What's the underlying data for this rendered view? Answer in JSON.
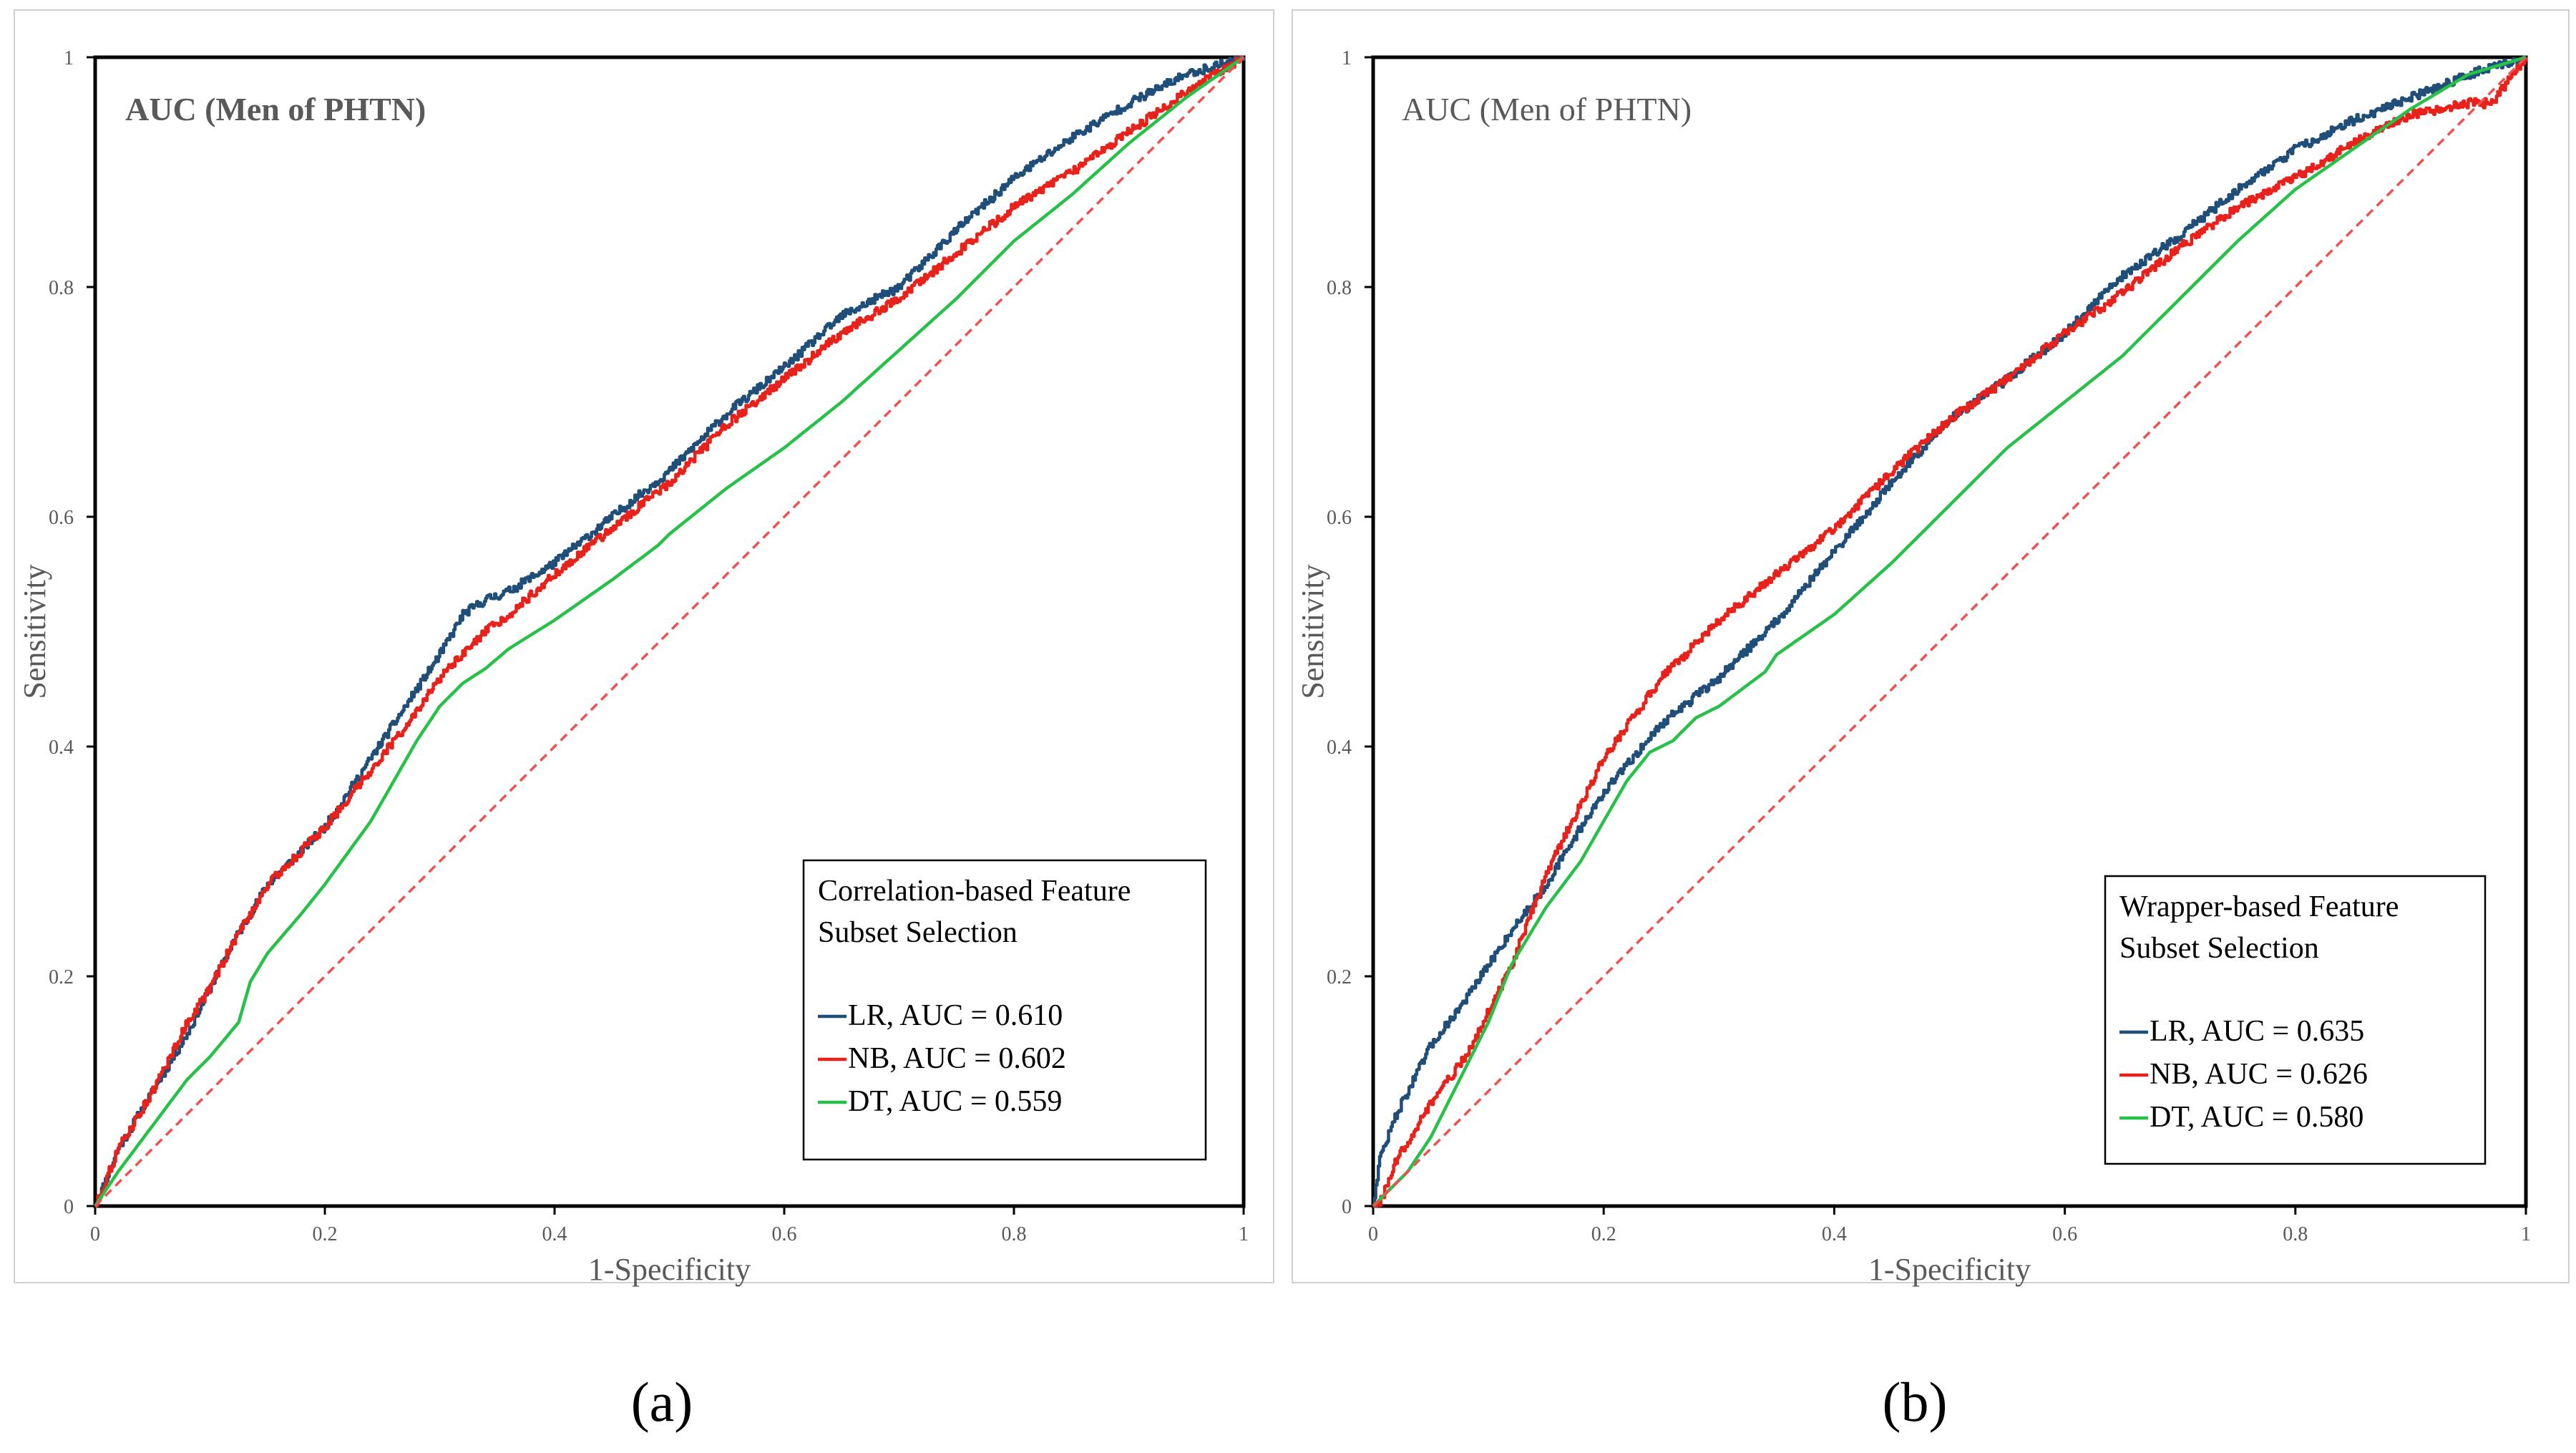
{
  "figure": {
    "panel_labels": [
      "(a)",
      "(b)"
    ]
  },
  "chart_data": [
    {
      "type": "line",
      "panel": "(a)",
      "title": "AUC (Men of PHTN)",
      "title_bold": true,
      "xlabel": "1-Specificity",
      "ylabel": "Sensitivity",
      "xlim": [
        0,
        1
      ],
      "ylim": [
        0,
        1
      ],
      "x_ticks": [
        0,
        0.2,
        0.4,
        0.6,
        0.8,
        1
      ],
      "y_ticks": [
        0,
        0.2,
        0.4,
        0.6,
        0.8,
        1
      ],
      "x_tick_labels": [
        "0",
        "0.2",
        "0.4",
        "0.6",
        "0.8",
        "1"
      ],
      "y_tick_labels": [
        "0",
        "0.2",
        "0.4",
        "0.6",
        "0.8",
        "1"
      ],
      "grid": false,
      "legend": {
        "title": [
          "Correlation-based Feature",
          "Subset Selection"
        ],
        "placement": "bottom-right"
      },
      "series": [
        {
          "name": "LR",
          "label": "LR, AUC = 0.610",
          "color": "#1f4e79",
          "x": [
            0,
            0.02,
            0.05,
            0.08,
            0.1,
            0.12,
            0.15,
            0.18,
            0.2,
            0.24,
            0.28,
            0.3,
            0.32,
            0.34,
            0.36,
            0.4,
            0.45,
            0.5,
            0.55,
            0.6,
            0.65,
            0.7,
            0.75,
            0.8,
            0.85,
            0.9,
            0.95,
            1
          ],
          "y": [
            0,
            0.05,
            0.1,
            0.15,
            0.19,
            0.23,
            0.28,
            0.31,
            0.33,
            0.39,
            0.45,
            0.48,
            0.515,
            0.528,
            0.535,
            0.56,
            0.6,
            0.64,
            0.69,
            0.73,
            0.775,
            0.8,
            0.85,
            0.895,
            0.93,
            0.96,
            0.985,
            1
          ]
        },
        {
          "name": "NB",
          "label": "NB, AUC = 0.602",
          "color": "#e8221b",
          "x": [
            0,
            0.02,
            0.05,
            0.08,
            0.1,
            0.12,
            0.15,
            0.18,
            0.2,
            0.24,
            0.28,
            0.3,
            0.32,
            0.34,
            0.36,
            0.4,
            0.45,
            0.5,
            0.55,
            0.6,
            0.65,
            0.7,
            0.75,
            0.8,
            0.85,
            0.9,
            0.95,
            1
          ],
          "y": [
            0,
            0.05,
            0.1,
            0.16,
            0.19,
            0.23,
            0.28,
            0.31,
            0.33,
            0.38,
            0.43,
            0.46,
            0.48,
            0.5,
            0.515,
            0.55,
            0.59,
            0.63,
            0.68,
            0.72,
            0.76,
            0.79,
            0.83,
            0.87,
            0.9,
            0.935,
            0.97,
            1
          ]
        },
        {
          "name": "DT",
          "label": "DT, AUC = 0.559",
          "color": "#27c048",
          "x": [
            0,
            0.02,
            0.05,
            0.08,
            0.1,
            0.125,
            0.135,
            0.15,
            0.18,
            0.2,
            0.24,
            0.28,
            0.3,
            0.32,
            0.34,
            0.36,
            0.4,
            0.45,
            0.49,
            0.5,
            0.55,
            0.6,
            0.65,
            0.7,
            0.75,
            0.8,
            0.85,
            0.9,
            0.95,
            1
          ],
          "y": [
            0,
            0.03,
            0.07,
            0.11,
            0.13,
            0.16,
            0.195,
            0.22,
            0.255,
            0.28,
            0.335,
            0.405,
            0.435,
            0.455,
            0.468,
            0.485,
            0.51,
            0.545,
            0.575,
            0.585,
            0.625,
            0.66,
            0.7,
            0.745,
            0.79,
            0.84,
            0.88,
            0.925,
            0.965,
            1
          ]
        },
        {
          "name": "Reference",
          "label": "",
          "color": "#f05050",
          "dashed": true,
          "x": [
            0,
            1
          ],
          "y": [
            0,
            1
          ]
        }
      ]
    },
    {
      "type": "line",
      "panel": "(b)",
      "title": "AUC (Men of PHTN)",
      "title_bold": false,
      "xlabel": "1-Specificity",
      "ylabel": "Sensitivity",
      "xlim": [
        0,
        1
      ],
      "ylim": [
        0,
        1
      ],
      "x_ticks": [
        0,
        0.2,
        0.4,
        0.6,
        0.8,
        1
      ],
      "y_ticks": [
        0,
        0.2,
        0.4,
        0.6,
        0.8,
        1
      ],
      "x_tick_labels": [
        "0",
        "0.2",
        "0.4",
        "0.6",
        "0.8",
        "1"
      ],
      "y_tick_labels": [
        "0",
        "0.2",
        "0.4",
        "0.6",
        "0.8",
        "1"
      ],
      "grid": false,
      "legend": {
        "title": [
          "Wrapper-based Feature",
          "Subset Selection"
        ],
        "placement": "bottom-right"
      },
      "series": [
        {
          "name": "LR",
          "label": "LR, AUC = 0.635",
          "color": "#1f4e79",
          "x": [
            0,
            0.005,
            0.02,
            0.05,
            0.08,
            0.1,
            0.12,
            0.15,
            0.18,
            0.2,
            0.25,
            0.3,
            0.35,
            0.4,
            0.45,
            0.5,
            0.55,
            0.6,
            0.65,
            0.7,
            0.75,
            0.8,
            0.85,
            0.9,
            0.95,
            1
          ],
          "y": [
            0,
            0.04,
            0.08,
            0.14,
            0.18,
            0.21,
            0.24,
            0.28,
            0.33,
            0.36,
            0.42,
            0.46,
            0.51,
            0.57,
            0.63,
            0.685,
            0.72,
            0.76,
            0.81,
            0.845,
            0.885,
            0.92,
            0.945,
            0.965,
            0.985,
            1
          ]
        },
        {
          "name": "NB",
          "label": "NB, AUC = 0.626",
          "color": "#e8221b",
          "x": [
            0,
            0.005,
            0.02,
            0.05,
            0.08,
            0.1,
            0.12,
            0.15,
            0.18,
            0.2,
            0.25,
            0.3,
            0.35,
            0.4,
            0.45,
            0.5,
            0.55,
            0.6,
            0.65,
            0.7,
            0.75,
            0.8,
            0.85,
            0.9,
            0.95,
            0.97,
            1
          ],
          "y": [
            0,
            0,
            0.04,
            0.09,
            0.13,
            0.17,
            0.21,
            0.29,
            0.35,
            0.39,
            0.46,
            0.51,
            0.55,
            0.59,
            0.64,
            0.685,
            0.72,
            0.76,
            0.795,
            0.835,
            0.87,
            0.895,
            0.925,
            0.95,
            0.96,
            0.96,
            1
          ]
        },
        {
          "name": "DT",
          "label": "DT, AUC = 0.580",
          "color": "#27c048",
          "x": [
            0,
            0.01,
            0.03,
            0.05,
            0.07,
            0.08,
            0.1,
            0.12,
            0.15,
            0.18,
            0.2,
            0.22,
            0.24,
            0.26,
            0.28,
            0.3,
            0.34,
            0.35,
            0.4,
            0.45,
            0.5,
            0.55,
            0.6,
            0.65,
            0.7,
            0.75,
            0.8,
            0.85,
            0.9,
            0.95,
            1
          ],
          "y": [
            0,
            0.01,
            0.03,
            0.06,
            0.1,
            0.12,
            0.16,
            0.21,
            0.26,
            0.3,
            0.335,
            0.37,
            0.395,
            0.405,
            0.425,
            0.435,
            0.465,
            0.48,
            0.515,
            0.56,
            0.61,
            0.66,
            0.7,
            0.74,
            0.79,
            0.84,
            0.885,
            0.92,
            0.955,
            0.985,
            1
          ]
        },
        {
          "name": "Reference",
          "label": "",
          "color": "#f05050",
          "dashed": true,
          "x": [
            0,
            1
          ],
          "y": [
            0,
            1
          ]
        }
      ]
    }
  ]
}
